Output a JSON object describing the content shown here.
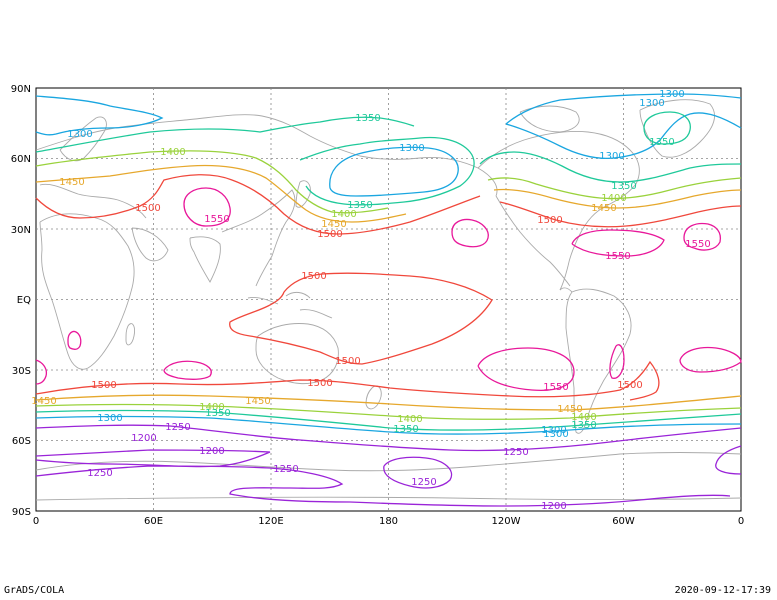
{
  "axes": {
    "x_ticks": [
      "0",
      "60E",
      "120E",
      "180",
      "120W",
      "60W",
      "0"
    ],
    "y_ticks": [
      "90N",
      "60N",
      "30N",
      "EQ",
      "30S",
      "60S",
      "90S"
    ]
  },
  "colors": {
    "c1200": "#9a24d8",
    "c1250": "#9a24d8",
    "c1300": "#1aa6e0",
    "c1350": "#1fc99a",
    "c1400": "#9ad23c",
    "c1450": "#e6a82d",
    "c1500": "#f0483c",
    "c1550": "#e8189a",
    "coast": "#aaaaaa",
    "grid": "#888888"
  },
  "contour_labels": [
    {
      "id": "l1",
      "text": "1300",
      "level": "c1300"
    },
    {
      "id": "l2",
      "text": "1400",
      "level": "c1400"
    },
    {
      "id": "l3",
      "text": "1450",
      "level": "c1450"
    },
    {
      "id": "l4",
      "text": "1500",
      "level": "c1500"
    },
    {
      "id": "l5",
      "text": "1550",
      "level": "c1550"
    },
    {
      "id": "l6",
      "text": "1350",
      "level": "c1350"
    },
    {
      "id": "l7",
      "text": "1300",
      "level": "c1300"
    },
    {
      "id": "l8",
      "text": "1350",
      "level": "c1350"
    },
    {
      "id": "l9",
      "text": "1400",
      "level": "c1400"
    },
    {
      "id": "l10",
      "text": "1450",
      "level": "c1450"
    },
    {
      "id": "l11",
      "text": "1500",
      "level": "c1500"
    },
    {
      "id": "l12",
      "text": "1300",
      "level": "c1300"
    },
    {
      "id": "l13",
      "text": "1300",
      "level": "c1300"
    },
    {
      "id": "l14",
      "text": "1350",
      "level": "c1350"
    },
    {
      "id": "l15",
      "text": "1300",
      "level": "c1300"
    },
    {
      "id": "l16",
      "text": "1350",
      "level": "c1350"
    },
    {
      "id": "l17",
      "text": "1400",
      "level": "c1400"
    },
    {
      "id": "l18",
      "text": "1450",
      "level": "c1450"
    },
    {
      "id": "l19",
      "text": "1500",
      "level": "c1500"
    },
    {
      "id": "l20",
      "text": "1550",
      "level": "c1550"
    },
    {
      "id": "l21",
      "text": "1550",
      "level": "c1550"
    },
    {
      "id": "l22",
      "text": "1500",
      "level": "c1500"
    },
    {
      "id": "l23",
      "text": "1500",
      "level": "c1500"
    },
    {
      "id": "l24",
      "text": "1500",
      "level": "c1500"
    },
    {
      "id": "l25",
      "text": "1550",
      "level": "c1550"
    },
    {
      "id": "l26",
      "text": "1500",
      "level": "c1500"
    },
    {
      "id": "l27",
      "text": "1500",
      "level": "c1500"
    },
    {
      "id": "l28",
      "text": "1450",
      "level": "c1450"
    },
    {
      "id": "l29",
      "text": "1450",
      "level": "c1450"
    },
    {
      "id": "l30",
      "text": "1400",
      "level": "c1400"
    },
    {
      "id": "l31",
      "text": "1350",
      "level": "c1350"
    },
    {
      "id": "l32",
      "text": "1300",
      "level": "c1300"
    },
    {
      "id": "l33",
      "text": "1400",
      "level": "c1400"
    },
    {
      "id": "l34",
      "text": "1350",
      "level": "c1350"
    },
    {
      "id": "l35",
      "text": "1300",
      "level": "c1300"
    },
    {
      "id": "l36",
      "text": "1450",
      "level": "c1450"
    },
    {
      "id": "l37",
      "text": "1400",
      "level": "c1400"
    },
    {
      "id": "l38",
      "text": "1350",
      "level": "c1350"
    },
    {
      "id": "l39",
      "text": "1300",
      "level": "c1300"
    },
    {
      "id": "l40",
      "text": "1250",
      "level": "c1250"
    },
    {
      "id": "l41",
      "text": "1200",
      "level": "c1200"
    },
    {
      "id": "l42",
      "text": "1200",
      "level": "c1200"
    },
    {
      "id": "l43",
      "text": "1250",
      "level": "c1250"
    },
    {
      "id": "l44",
      "text": "1250",
      "level": "c1250"
    },
    {
      "id": "l45",
      "text": "1250",
      "level": "c1250"
    },
    {
      "id": "l46",
      "text": "1200",
      "level": "c1200"
    },
    {
      "id": "l47",
      "text": "1250",
      "level": "c1250"
    }
  ],
  "footer": {
    "left": "GrADS/COLA",
    "right": "2020-09-12-17:39"
  }
}
